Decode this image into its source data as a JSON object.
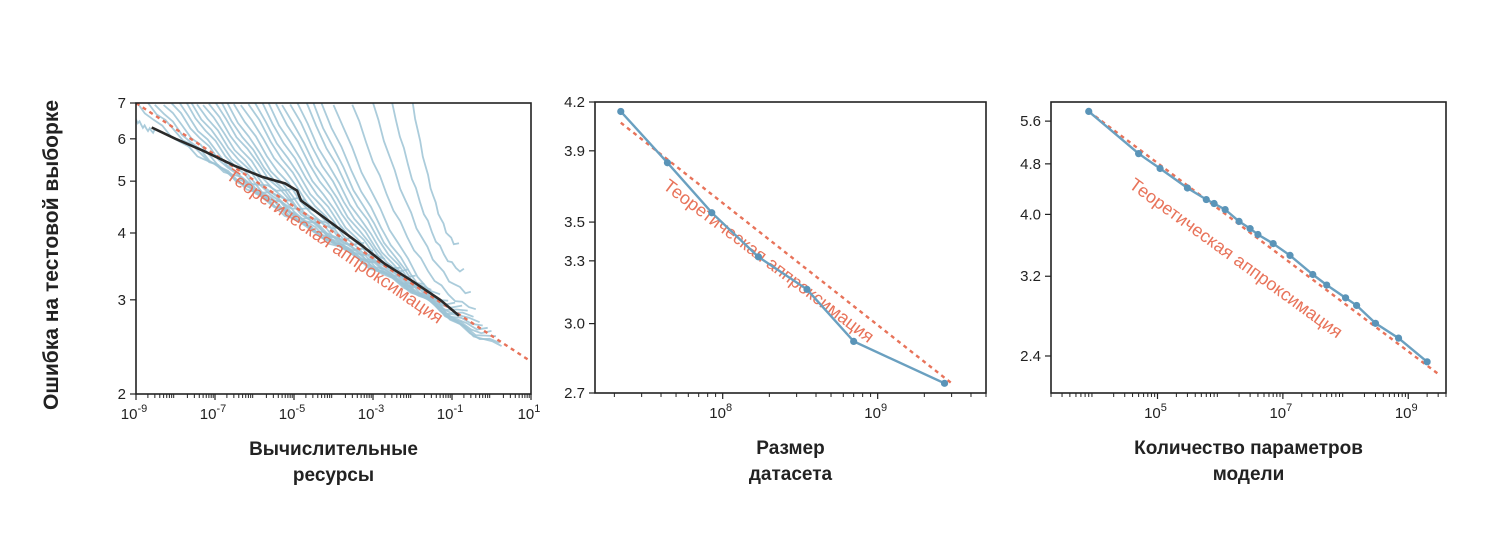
{
  "ylabel": "Ошибка на тестовой выборке",
  "chart_data": [
    {
      "type": "line",
      "xscale": "log",
      "yscale": "log",
      "xlim": [
        1e-09,
        10
      ],
      "ylim": [
        2,
        7
      ],
      "xticks": [
        {
          "v": 1e-09,
          "label": "10-9",
          "base": "10",
          "exp": "-9"
        },
        {
          "v": 1e-07,
          "label": "10-7",
          "base": "10",
          "exp": "-7"
        },
        {
          "v": 1e-05,
          "label": "10-5",
          "base": "10",
          "exp": "-5"
        },
        {
          "v": 0.001,
          "label": "10-3",
          "base": "10",
          "exp": "-3"
        },
        {
          "v": 0.1,
          "label": "10-1",
          "base": "10",
          "exp": "-1"
        },
        {
          "v": 10,
          "label": "101",
          "base": "10",
          "exp": "1"
        }
      ],
      "yticks": [
        {
          "v": 2,
          "label": "2"
        },
        {
          "v": 3,
          "label": "3"
        },
        {
          "v": 4,
          "label": "4"
        },
        {
          "v": 5,
          "label": "5"
        },
        {
          "v": 6,
          "label": "6"
        },
        {
          "v": 7,
          "label": "7"
        }
      ],
      "xlabel": [
        "Вычислительные",
        "ресурсы"
      ],
      "annotation": "Теоретическая аппроксимация",
      "fit": {
        "x": [
          1e-09,
          10
        ],
        "y": [
          7.0,
          2.3
        ]
      },
      "frontier": {
        "x": [
          2.5e-09,
          1e-08,
          5e-08,
          3e-07,
          1.5e-06,
          6e-06,
          1.2e-05,
          1.5e-05,
          8e-05,
          0.0005,
          0.002,
          0.01,
          0.05,
          0.15
        ],
        "y": [
          6.3,
          6.0,
          5.7,
          5.35,
          5.1,
          4.95,
          4.8,
          4.6,
          4.2,
          3.8,
          3.5,
          3.25,
          3.0,
          2.8
        ]
      },
      "runs": [
        {
          "xs": 5e-10,
          "ys": 7,
          "xe": 3e-09,
          "ye": 6.2
        },
        {
          "xs": 1e-09,
          "ys": 7,
          "xe": 1e-05,
          "ye": 4.8
        },
        {
          "xs": 2e-09,
          "ys": 7,
          "xe": 2e-05,
          "ye": 4.6
        },
        {
          "xs": 3e-09,
          "ys": 7,
          "xe": 4e-05,
          "ye": 4.4
        },
        {
          "xs": 5e-09,
          "ys": 7,
          "xe": 8e-05,
          "ye": 4.2
        },
        {
          "xs": 8e-09,
          "ys": 7,
          "xe": 0.00015,
          "ye": 4.1
        },
        {
          "xs": 1.2e-08,
          "ys": 7,
          "xe": 0.0003,
          "ye": 3.9
        },
        {
          "xs": 1.8e-08,
          "ys": 7,
          "xe": 0.0006,
          "ye": 3.8
        },
        {
          "xs": 2.5e-08,
          "ys": 7,
          "xe": 0.001,
          "ye": 3.7
        },
        {
          "xs": 3.5e-08,
          "ys": 7,
          "xe": 0.002,
          "ye": 3.6
        },
        {
          "xs": 5e-08,
          "ys": 7,
          "xe": 0.003,
          "ye": 3.5
        },
        {
          "xs": 7e-08,
          "ys": 7,
          "xe": 0.005,
          "ye": 3.45
        },
        {
          "xs": 1e-07,
          "ys": 7,
          "xe": 0.008,
          "ye": 3.4
        },
        {
          "xs": 1.4e-07,
          "ys": 7,
          "xe": 0.012,
          "ye": 3.3
        },
        {
          "xs": 2e-07,
          "ys": 7,
          "xe": 0.02,
          "ye": 3.2
        },
        {
          "xs": 3e-07,
          "ys": 7,
          "xe": 0.03,
          "ye": 3.15
        },
        {
          "xs": 4.5e-07,
          "ys": 7,
          "xe": 0.05,
          "ye": 3.1
        },
        {
          "xs": 7e-07,
          "ys": 7,
          "xe": 0.08,
          "ye": 3.0
        },
        {
          "xs": 1e-06,
          "ys": 7,
          "xe": 0.12,
          "ye": 2.95
        },
        {
          "xs": 1.5e-06,
          "ys": 7,
          "xe": 0.18,
          "ye": 2.9
        },
        {
          "xs": 2.2e-06,
          "ys": 7,
          "xe": 0.25,
          "ye": 2.85
        },
        {
          "xs": 3.5e-06,
          "ys": 7,
          "xe": 0.35,
          "ye": 2.8
        },
        {
          "xs": 5e-06,
          "ys": 7,
          "xe": 0.5,
          "ye": 2.75
        },
        {
          "xs": 8e-06,
          "ys": 7,
          "xe": 0.6,
          "ye": 2.7
        },
        {
          "xs": 1.2e-05,
          "ys": 7,
          "xe": 0.8,
          "ye": 2.65
        },
        {
          "xs": 2e-05,
          "ys": 7,
          "xe": 1.0,
          "ye": 2.6
        },
        {
          "xs": 3e-05,
          "ys": 7,
          "xe": 1.3,
          "ye": 2.55
        },
        {
          "xs": 5e-05,
          "ys": 7,
          "xe": 1.6,
          "ye": 2.5
        },
        {
          "xs": 0.0001,
          "ys": 7,
          "xe": 1.8,
          "ye": 2.48
        },
        {
          "xs": 0.0003,
          "ys": 7,
          "xe": 0.4,
          "ye": 2.9
        },
        {
          "xs": 0.001,
          "ys": 7,
          "xe": 0.3,
          "ye": 3.1
        },
        {
          "xs": 0.003,
          "ys": 7,
          "xe": 0.2,
          "ye": 3.4
        },
        {
          "xs": 0.01,
          "ys": 7,
          "xe": 0.15,
          "ye": 3.8
        }
      ]
    },
    {
      "type": "line",
      "xscale": "log",
      "yscale": "log",
      "xlim": [
        15000000.0,
        5000000000.0
      ],
      "ylim": [
        2.7,
        4.2
      ],
      "xticks": [
        {
          "v": 100000000.0,
          "label": "108",
          "base": "10",
          "exp": "8"
        },
        {
          "v": 1000000000.0,
          "label": "109",
          "base": "10",
          "exp": "9"
        }
      ],
      "yticks": [
        {
          "v": 2.7,
          "label": "2.7"
        },
        {
          "v": 3.0,
          "label": "3.0"
        },
        {
          "v": 3.3,
          "label": "3.3"
        },
        {
          "v": 3.5,
          "label": "3.5"
        },
        {
          "v": 3.9,
          "label": "3.9"
        },
        {
          "v": 4.2,
          "label": "4.2"
        }
      ],
      "xlabel": [
        "Размер",
        "датасета"
      ],
      "annotation": "Теоретическая аппроксимация",
      "fit": {
        "x": [
          22000000.0,
          3000000000.0
        ],
        "y": [
          4.07,
          2.74
        ]
      },
      "series": {
        "x": [
          22000000.0,
          44000000.0,
          85000000.0,
          170000000.0,
          350000000.0,
          700000000.0,
          2700000000.0
        ],
        "y": [
          4.14,
          3.83,
          3.55,
          3.32,
          3.16,
          2.92,
          2.74
        ]
      }
    },
    {
      "type": "line",
      "xscale": "log",
      "yscale": "log",
      "xlim": [
        2000.0,
        4000000000.0
      ],
      "ylim": [
        2.1,
        6.0
      ],
      "xticks": [
        {
          "v": 100000.0,
          "label": "105",
          "base": "10",
          "exp": "5"
        },
        {
          "v": 10000000.0,
          "label": "107",
          "base": "10",
          "exp": "7"
        },
        {
          "v": 1000000000.0,
          "label": "109",
          "base": "10",
          "exp": "9"
        }
      ],
      "yticks": [
        {
          "v": 2.4,
          "label": "2.4"
        },
        {
          "v": 3.2,
          "label": "3.2"
        },
        {
          "v": 4.0,
          "label": "4.0"
        },
        {
          "v": 4.8,
          "label": "4.8"
        },
        {
          "v": 5.6,
          "label": "5.6"
        }
      ],
      "xlabel": [
        "Количество параметров",
        "модели"
      ],
      "annotation": "Теоретическая аппроксимация",
      "fit": {
        "x": [
          8000.0,
          3000000000.0
        ],
        "y": [
          5.8,
          2.25
        ]
      },
      "series": {
        "x": [
          8000.0,
          50000.0,
          110000.0,
          300000.0,
          600000.0,
          800000.0,
          1200000.0,
          2000000.0,
          3000000.0,
          4000000.0,
          7000000.0,
          13000000.0,
          30000000.0,
          50000000.0,
          100000000.0,
          150000000.0,
          300000000.0,
          700000000.0,
          2000000000.0
        ],
        "y": [
          5.8,
          4.98,
          4.72,
          4.4,
          4.22,
          4.16,
          4.07,
          3.9,
          3.8,
          3.72,
          3.6,
          3.45,
          3.22,
          3.1,
          2.96,
          2.88,
          2.7,
          2.56,
          2.35
        ]
      }
    }
  ],
  "colors": {
    "run_line": "#9cc3d5",
    "series_line": "#6aa0c0",
    "series_point": "#5a94b8",
    "frontier": "#2a2a2a",
    "fit": "#e8735a",
    "axis": "#222222"
  }
}
